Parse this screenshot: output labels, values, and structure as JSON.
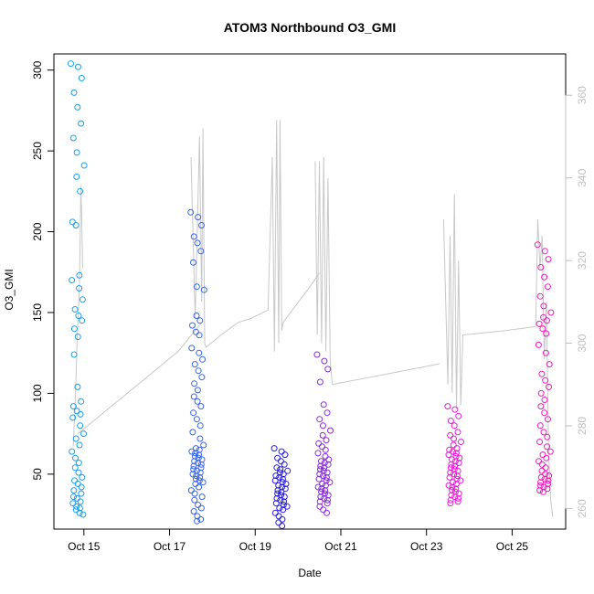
{
  "chart_data": {
    "type": "scatter",
    "title": "ATOM3 Northbound O3_GMI",
    "xlabel": "Date",
    "ylabel": "O3_GMI",
    "x_ticks": [
      "Oct 15",
      "Oct 17",
      "Oct 19",
      "Oct 21",
      "Oct 23",
      "Oct 25"
    ],
    "x_tick_days": [
      15,
      17,
      19,
      21,
      23,
      25
    ],
    "xlim": [
      14.3,
      26.25
    ],
    "ylim": [
      16,
      310
    ],
    "y_ticks": [
      50,
      100,
      150,
      200,
      250,
      300
    ],
    "y2lim": [
      255,
      370
    ],
    "y2_ticks": [
      260,
      280,
      300,
      320,
      340,
      360
    ],
    "grid": false,
    "legend": "none",
    "series": [
      {
        "color": "#1ca0f0",
        "clusters": [
          {
            "x": 14.85,
            "values": [
              304,
              302,
              295,
              286,
              277,
              267,
              258,
              249,
              241,
              234,
              225,
              206,
              204,
              173,
              170,
              165,
              158,
              152,
              148,
              145,
              140,
              135,
              124,
              104,
              95,
              92,
              89,
              87,
              85,
              80,
              75,
              72,
              68,
              64,
              60,
              57,
              54,
              51,
              48,
              46,
              44,
              42,
              40,
              38,
              36,
              35,
              33,
              32,
              30,
              29,
              28,
              26,
              25
            ]
          }
        ]
      },
      {
        "color": "#3a66e8",
        "clusters": [
          {
            "x": 17.65,
            "values": [
              212,
              209,
              204,
              197,
              193,
              188,
              181,
              166,
              164,
              148,
              145,
              142,
              138,
              136,
              128,
              125,
              121,
              118,
              114,
              110,
              106,
              102,
              98,
              95,
              92,
              88,
              84,
              80,
              76,
              72,
              68,
              66,
              65,
              64,
              63,
              62,
              61,
              60,
              59,
              58,
              57,
              56,
              55,
              54,
              53,
              52,
              51,
              50,
              49,
              48,
              47,
              46,
              45,
              44,
              42,
              40,
              38,
              36,
              34,
              31,
              29,
              27,
              24,
              22,
              21
            ]
          }
        ]
      },
      {
        "color": "#2a1ee0",
        "clusters": [
          {
            "x": 19.6,
            "values": [
              66,
              64,
              62,
              60,
              58,
              56,
              54,
              53,
              52,
              51,
              50,
              49,
              48,
              47,
              46,
              45,
              44,
              43,
              42,
              41,
              40,
              39,
              38,
              37,
              36,
              35,
              34,
              33,
              32,
              31,
              30,
              29,
              28,
              26,
              24,
              22,
              20,
              18
            ]
          }
        ]
      },
      {
        "color": "#8a2ae0",
        "clusters": [
          {
            "x": 20.6,
            "values": [
              124,
              120,
              115,
              107,
              93,
              88,
              84,
              80,
              77,
              74,
              71,
              69,
              67,
              65,
              63,
              61,
              59,
              58,
              57,
              56,
              55,
              54,
              53,
              52,
              51,
              50,
              49,
              48,
              47,
              46,
              45,
              44,
              43,
              42,
              41,
              40,
              39,
              38,
              37,
              36,
              35,
              34,
              33,
              32,
              30,
              28,
              26
            ]
          }
        ]
      },
      {
        "color": "#e81ed8",
        "clusters": [
          {
            "x": 23.65,
            "values": [
              92,
              90,
              86,
              83,
              80,
              76,
              74,
              72,
              70,
              68,
              66,
              65,
              64,
              63,
              62,
              61,
              60,
              59,
              58,
              57,
              56,
              55,
              54,
              53,
              52,
              51,
              50,
              49,
              48,
              47,
              46,
              45,
              44,
              43,
              42,
              41,
              40,
              39,
              38,
              37,
              36,
              35,
              34,
              33,
              32
            ]
          }
        ]
      },
      {
        "color": "#f01eb8",
        "clusters": [
          {
            "x": 25.75,
            "values": [
              192,
              188,
              183,
              178,
              172,
              166,
              160,
              154,
              150,
              147,
              145,
              143,
              140,
              137,
              130,
              125,
              118,
              112,
              108,
              104,
              100,
              96,
              92,
              88,
              84,
              80,
              76,
              73,
              70,
              67,
              64,
              62,
              60,
              58,
              56,
              54,
              52,
              50,
              49,
              48,
              47,
              46,
              45,
              44,
              43,
              42,
              41,
              40,
              39
            ]
          }
        ]
      }
    ],
    "secondary_line": {
      "color": "#c8c8c8",
      "axis": "right",
      "segments": [
        {
          "points": [
            [
              14.75,
              275
            ],
            [
              14.8,
              286
            ],
            [
              14.84,
              300
            ],
            [
              14.88,
              310
            ],
            [
              14.9,
              316
            ],
            [
              14.93,
              338
            ],
            [
              14.95,
              330
            ],
            [
              14.97,
              318
            ]
          ]
        },
        {
          "points": [
            [
              14.85,
              278
            ],
            [
              17.2,
              298
            ],
            [
              17.75,
              305
            ]
          ]
        },
        {
          "points": [
            [
              17.5,
              345
            ],
            [
              17.6,
              306
            ],
            [
              17.7,
              350
            ],
            [
              17.75,
              310
            ],
            [
              17.78,
              352
            ],
            [
              17.82,
              300
            ],
            [
              17.85,
              299
            ],
            [
              18.2,
              302
            ],
            [
              18.6,
              305
            ],
            [
              18.9,
              306
            ],
            [
              19.3,
              308
            ]
          ]
        },
        {
          "points": [
            [
              19.3,
              308
            ],
            [
              19.4,
              345
            ],
            [
              19.45,
              298
            ],
            [
              19.5,
              354
            ],
            [
              19.55,
              300
            ],
            [
              19.58,
              354
            ],
            [
              19.62,
              303
            ],
            [
              19.65,
              305
            ]
          ]
        },
        {
          "points": [
            [
              19.65,
              305
            ],
            [
              20.3,
              314
            ],
            [
              20.5,
              317
            ]
          ]
        },
        {
          "points": [
            [
              20.4,
              344
            ],
            [
              20.45,
              302
            ],
            [
              20.5,
              344
            ],
            [
              20.55,
              300
            ],
            [
              20.6,
              345
            ],
            [
              20.65,
              298
            ],
            [
              20.7,
              340
            ],
            [
              20.75,
              296
            ],
            [
              20.8,
              290
            ]
          ]
        },
        {
          "points": [
            [
              20.8,
              290
            ],
            [
              22.3,
              293
            ],
            [
              23.3,
              295
            ]
          ]
        },
        {
          "points": [
            [
              23.4,
              330
            ],
            [
              23.5,
              290
            ],
            [
              23.55,
              326
            ],
            [
              23.6,
              288
            ],
            [
              23.65,
              336
            ],
            [
              23.7,
              284
            ],
            [
              23.75,
              320
            ],
            [
              23.8,
              285
            ],
            [
              23.85,
              302
            ]
          ]
        },
        {
          "points": [
            [
              23.85,
              302
            ],
            [
              24.8,
              303
            ],
            [
              25.55,
              304
            ]
          ]
        },
        {
          "points": [
            [
              25.55,
              304
            ],
            [
              25.6,
              330
            ],
            [
              25.65,
              318
            ],
            [
              25.7,
              326
            ],
            [
              25.75,
              296
            ],
            [
              25.8,
              310
            ],
            [
              25.85,
              274
            ],
            [
              25.9,
              262
            ],
            [
              25.95,
              258
            ]
          ]
        }
      ]
    }
  }
}
